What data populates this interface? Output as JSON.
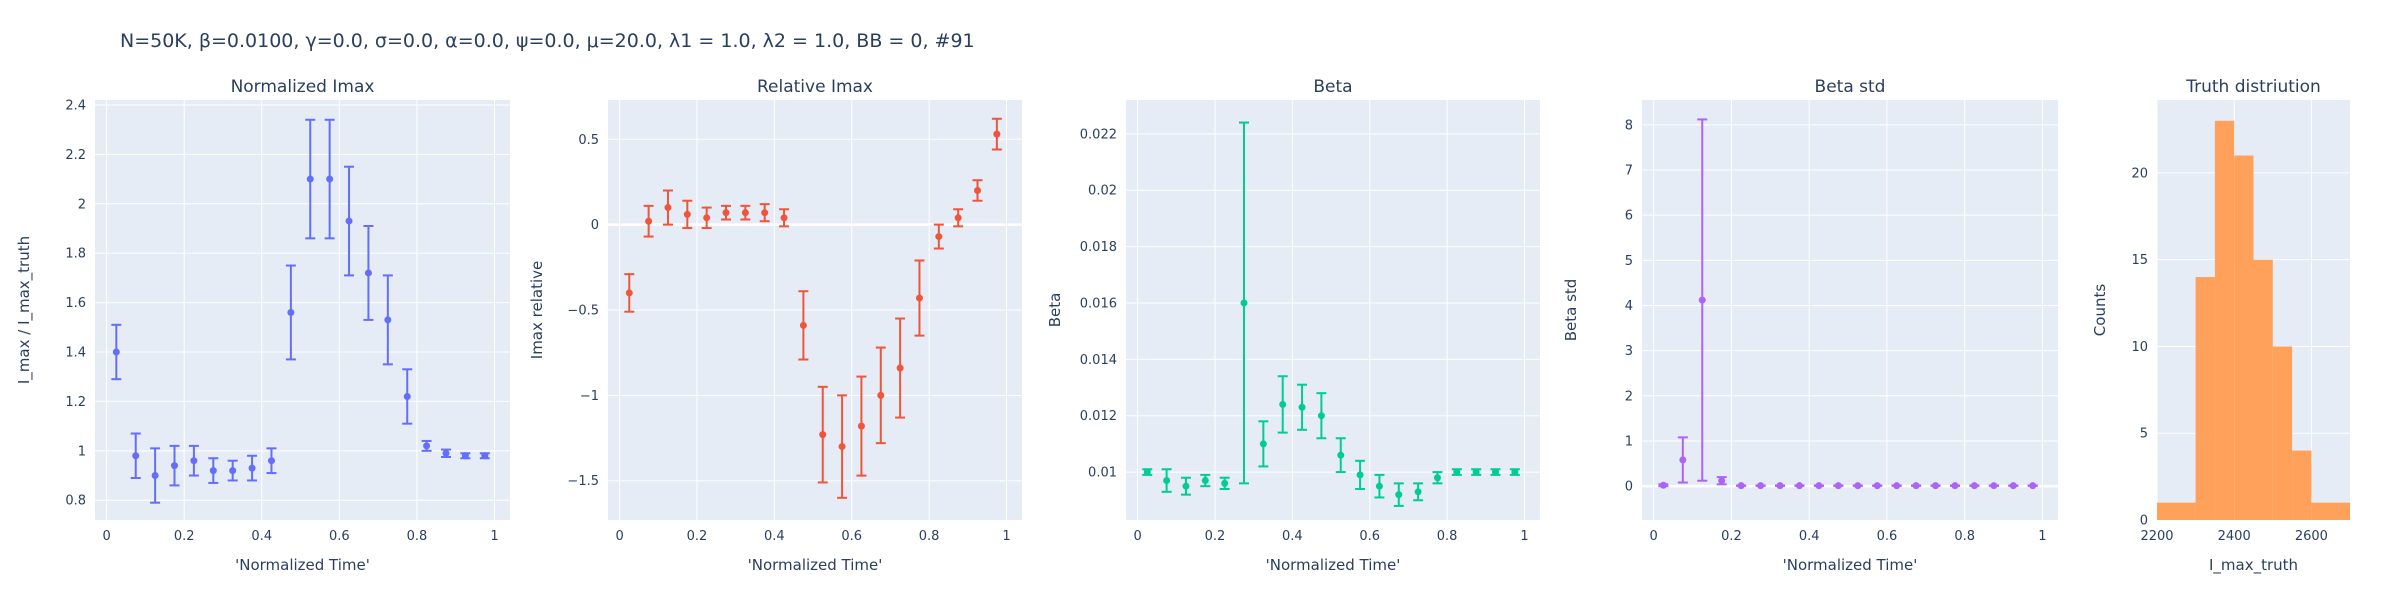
{
  "suptitle": "N=50K, β=0.0100, γ=0.0, σ=0.0,  α=0.0, ψ=0.0, μ=20.0, λ1 = 1.0, λ2 = 1.0, BB = 0, #91",
  "colors": {
    "plot_bg": "#e5ecf6",
    "grid": "#ffffff",
    "text": "#2a3f5f",
    "series_normalized_imax": "#636efa",
    "series_relative_imax": "#ef553b",
    "series_beta": "#00cc96",
    "series_beta_std": "#ab63fa",
    "series_truth_hist": "#ffa15a"
  },
  "chart_data": [
    {
      "id": "normalized-imax",
      "type": "scatter",
      "title": "Normalized Imax",
      "xlabel": "'Normalized Time'",
      "ylabel": "I_max / I_max_truth",
      "xlim": [
        -0.03,
        1.04
      ],
      "ylim": [
        0.72,
        2.42
      ],
      "xticks": [
        {
          "v": 0,
          "label": "0"
        },
        {
          "v": 0.2,
          "label": "0.2"
        },
        {
          "v": 0.4,
          "label": "0.4"
        },
        {
          "v": 0.6,
          "label": "0.6"
        },
        {
          "v": 0.8,
          "label": "0.8"
        },
        {
          "v": 1,
          "label": "1"
        }
      ],
      "yticks": [
        {
          "v": 0.8,
          "label": "0.8"
        },
        {
          "v": 1.0,
          "label": "1"
        },
        {
          "v": 1.2,
          "label": "1.2"
        },
        {
          "v": 1.4,
          "label": "1.4"
        },
        {
          "v": 1.6,
          "label": "1.6"
        },
        {
          "v": 1.8,
          "label": "1.8"
        },
        {
          "v": 2.0,
          "label": "2"
        },
        {
          "v": 2.2,
          "label": "2.2"
        },
        {
          "v": 2.4,
          "label": "2.4"
        }
      ],
      "zero_line": false,
      "grid": true,
      "x": [
        0.025,
        0.075,
        0.125,
        0.175,
        0.225,
        0.275,
        0.325,
        0.375,
        0.425,
        0.475,
        0.525,
        0.575,
        0.625,
        0.675,
        0.725,
        0.775,
        0.825,
        0.875,
        0.925,
        0.975
      ],
      "y": [
        1.4,
        0.98,
        0.9,
        0.94,
        0.96,
        0.92,
        0.92,
        0.93,
        0.96,
        1.56,
        2.1,
        2.1,
        1.93,
        1.72,
        1.53,
        1.22,
        1.02,
        0.99,
        0.98,
        0.98
      ],
      "err": [
        0.11,
        0.09,
        0.11,
        0.08,
        0.06,
        0.05,
        0.04,
        0.05,
        0.05,
        0.19,
        0.24,
        0.24,
        0.22,
        0.19,
        0.18,
        0.11,
        0.02,
        0.015,
        0.01,
        0.01
      ]
    },
    {
      "id": "relative-imax",
      "type": "scatter",
      "title": "Relative Imax",
      "xlabel": "'Normalized Time'",
      "ylabel": "Imax relative",
      "xlim": [
        -0.03,
        1.04
      ],
      "ylim": [
        -1.73,
        0.73
      ],
      "xticks": [
        {
          "v": 0,
          "label": "0"
        },
        {
          "v": 0.2,
          "label": "0.2"
        },
        {
          "v": 0.4,
          "label": "0.4"
        },
        {
          "v": 0.6,
          "label": "0.6"
        },
        {
          "v": 0.8,
          "label": "0.8"
        },
        {
          "v": 1,
          "label": "1"
        }
      ],
      "yticks": [
        {
          "v": -1.5,
          "label": "−1.5"
        },
        {
          "v": -1.0,
          "label": "−1"
        },
        {
          "v": -0.5,
          "label": "−0.5"
        },
        {
          "v": 0,
          "label": "0"
        },
        {
          "v": 0.5,
          "label": "0.5"
        }
      ],
      "zero_line": true,
      "grid": true,
      "x": [
        0.025,
        0.075,
        0.125,
        0.175,
        0.225,
        0.275,
        0.325,
        0.375,
        0.425,
        0.475,
        0.525,
        0.575,
        0.625,
        0.675,
        0.725,
        0.775,
        0.825,
        0.875,
        0.925,
        0.975
      ],
      "y": [
        -0.4,
        0.02,
        0.1,
        0.06,
        0.04,
        0.07,
        0.07,
        0.07,
        0.04,
        -0.59,
        -1.23,
        -1.3,
        -1.18,
        -1.0,
        -0.84,
        -0.43,
        -0.07,
        0.04,
        0.2,
        0.53
      ],
      "err": [
        0.11,
        0.09,
        0.1,
        0.08,
        0.06,
        0.04,
        0.04,
        0.05,
        0.05,
        0.2,
        0.28,
        0.3,
        0.29,
        0.28,
        0.29,
        0.22,
        0.07,
        0.05,
        0.06,
        0.09
      ]
    },
    {
      "id": "beta",
      "type": "scatter",
      "title": "Beta",
      "xlabel": "'Normalized Time'",
      "ylabel": "Beta",
      "xlim": [
        -0.03,
        1.04
      ],
      "ylim": [
        0.0083,
        0.0232
      ],
      "xticks": [
        {
          "v": 0,
          "label": "0"
        },
        {
          "v": 0.2,
          "label": "0.2"
        },
        {
          "v": 0.4,
          "label": "0.4"
        },
        {
          "v": 0.6,
          "label": "0.6"
        },
        {
          "v": 0.8,
          "label": "0.8"
        },
        {
          "v": 1,
          "label": "1"
        }
      ],
      "yticks": [
        {
          "v": 0.01,
          "label": "0.01"
        },
        {
          "v": 0.012,
          "label": "0.012"
        },
        {
          "v": 0.014,
          "label": "0.014"
        },
        {
          "v": 0.016,
          "label": "0.016"
        },
        {
          "v": 0.018,
          "label": "0.018"
        },
        {
          "v": 0.02,
          "label": "0.02"
        },
        {
          "v": 0.022,
          "label": "0.022"
        }
      ],
      "zero_line": false,
      "grid": true,
      "x": [
        0.025,
        0.075,
        0.125,
        0.175,
        0.225,
        0.275,
        0.325,
        0.375,
        0.425,
        0.475,
        0.525,
        0.575,
        0.625,
        0.675,
        0.725,
        0.775,
        0.825,
        0.875,
        0.925,
        0.975
      ],
      "y": [
        0.01,
        0.0097,
        0.0095,
        0.0097,
        0.0096,
        0.016,
        0.011,
        0.0124,
        0.0123,
        0.012,
        0.0106,
        0.0099,
        0.0095,
        0.0092,
        0.0093,
        0.0098,
        0.01,
        0.01,
        0.01,
        0.01
      ],
      "err": [
        0.0001,
        0.0004,
        0.0003,
        0.0002,
        0.0002,
        0.0064,
        0.0008,
        0.001,
        0.0008,
        0.0008,
        0.0006,
        0.0005,
        0.0004,
        0.0004,
        0.0003,
        0.0002,
        0.0001,
        0.0001,
        0.0001,
        0.0001
      ]
    },
    {
      "id": "beta-std",
      "type": "scatter",
      "title": "Beta std",
      "xlabel": "'Normalized Time'",
      "ylabel": "Beta std",
      "xlim": [
        -0.03,
        1.04
      ],
      "ylim": [
        -0.75,
        8.55
      ],
      "xticks": [
        {
          "v": 0,
          "label": "0"
        },
        {
          "v": 0.2,
          "label": "0.2"
        },
        {
          "v": 0.4,
          "label": "0.4"
        },
        {
          "v": 0.6,
          "label": "0.6"
        },
        {
          "v": 0.8,
          "label": "0.8"
        },
        {
          "v": 1,
          "label": "1"
        }
      ],
      "yticks": [
        {
          "v": 0,
          "label": "0"
        },
        {
          "v": 1,
          "label": "1"
        },
        {
          "v": 2,
          "label": "2"
        },
        {
          "v": 3,
          "label": "3"
        },
        {
          "v": 4,
          "label": "4"
        },
        {
          "v": 5,
          "label": "5"
        },
        {
          "v": 6,
          "label": "6"
        },
        {
          "v": 7,
          "label": "7"
        },
        {
          "v": 8,
          "label": "8"
        }
      ],
      "zero_line": true,
      "grid": true,
      "x": [
        0.025,
        0.075,
        0.125,
        0.175,
        0.225,
        0.275,
        0.325,
        0.375,
        0.425,
        0.475,
        0.525,
        0.575,
        0.625,
        0.675,
        0.725,
        0.775,
        0.825,
        0.875,
        0.925,
        0.975
      ],
      "y": [
        0.02,
        0.58,
        4.12,
        0.12,
        0.01,
        0.01,
        0.01,
        0.01,
        0.01,
        0.01,
        0.01,
        0.01,
        0.01,
        0.01,
        0.01,
        0.01,
        0.01,
        0.01,
        0.01,
        0.01
      ],
      "err": [
        0.02,
        0.5,
        4.0,
        0.08,
        0.005,
        0.005,
        0.005,
        0.005,
        0.005,
        0.005,
        0.005,
        0.005,
        0.005,
        0.005,
        0.005,
        0.005,
        0.005,
        0.005,
        0.005,
        0.005
      ]
    },
    {
      "id": "truth-distribution",
      "type": "bar",
      "title": "Truth distriution",
      "xlabel": "I_max_truth",
      "ylabel": "Counts",
      "xlim": [
        2200,
        2700
      ],
      "ylim": [
        0,
        24.2
      ],
      "xticks": [
        {
          "v": 2200,
          "label": "2200"
        },
        {
          "v": 2400,
          "label": "2400"
        },
        {
          "v": 2600,
          "label": "2600"
        }
      ],
      "yticks": [
        {
          "v": 0,
          "label": "0"
        },
        {
          "v": 5,
          "label": "5"
        },
        {
          "v": 10,
          "label": "10"
        },
        {
          "v": 15,
          "label": "15"
        },
        {
          "v": 20,
          "label": "20"
        }
      ],
      "zero_line": false,
      "grid": true,
      "bins": [
        2200,
        2300,
        2350,
        2400,
        2450,
        2500,
        2550,
        2600,
        2700
      ],
      "counts": [
        1,
        14,
        23,
        21,
        15,
        10,
        4,
        1
      ]
    }
  ]
}
